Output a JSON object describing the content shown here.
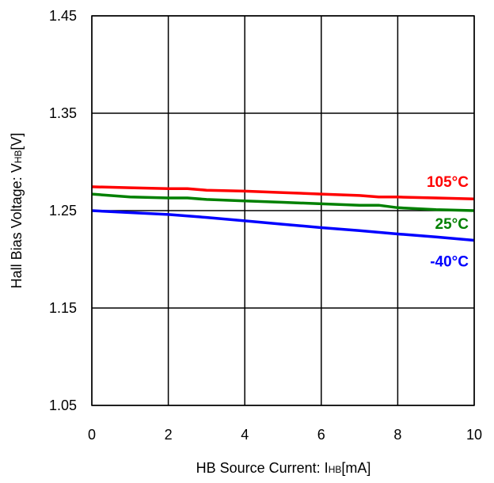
{
  "chart_data": {
    "type": "line",
    "xlabel": {
      "prefix": "HB Source Current: I",
      "sub": "HB",
      "suffix": "[mA]"
    },
    "ylabel": {
      "prefix": "Hall Bias Voltage: V",
      "sub": "HB",
      "suffix": "[V]"
    },
    "xlim": [
      0,
      10
    ],
    "ylim": [
      1.05,
      1.45
    ],
    "x_ticks": [
      "0",
      "2",
      "4",
      "6",
      "8",
      "10"
    ],
    "y_ticks": [
      "1.05",
      "1.15",
      "1.25",
      "1.35",
      "1.45"
    ],
    "grid": true,
    "series": [
      {
        "name": "105°C",
        "color": "#ff0000",
        "x": [
          0,
          1,
          2,
          2.5,
          3,
          4,
          5,
          6,
          7,
          7.5,
          8,
          9,
          10
        ],
        "y": [
          1.2745,
          1.2735,
          1.2725,
          1.2725,
          1.271,
          1.27,
          1.2685,
          1.267,
          1.2655,
          1.264,
          1.264,
          1.263,
          1.262
        ]
      },
      {
        "name": "25°C",
        "color": "#008000",
        "x": [
          0,
          1,
          2,
          2.5,
          3,
          4,
          5,
          6,
          7,
          7.5,
          8,
          9,
          10
        ],
        "y": [
          1.267,
          1.264,
          1.263,
          1.263,
          1.2615,
          1.26,
          1.2585,
          1.257,
          1.2555,
          1.2555,
          1.253,
          1.251,
          1.25
        ]
      },
      {
        "name": "-40°C",
        "color": "#0000ff",
        "x": [
          0,
          1,
          2,
          3,
          4,
          5,
          6,
          7,
          8,
          9,
          10
        ],
        "y": [
          1.25,
          1.248,
          1.246,
          1.243,
          1.2395,
          1.236,
          1.2325,
          1.2295,
          1.226,
          1.223,
          1.2195
        ]
      }
    ]
  }
}
